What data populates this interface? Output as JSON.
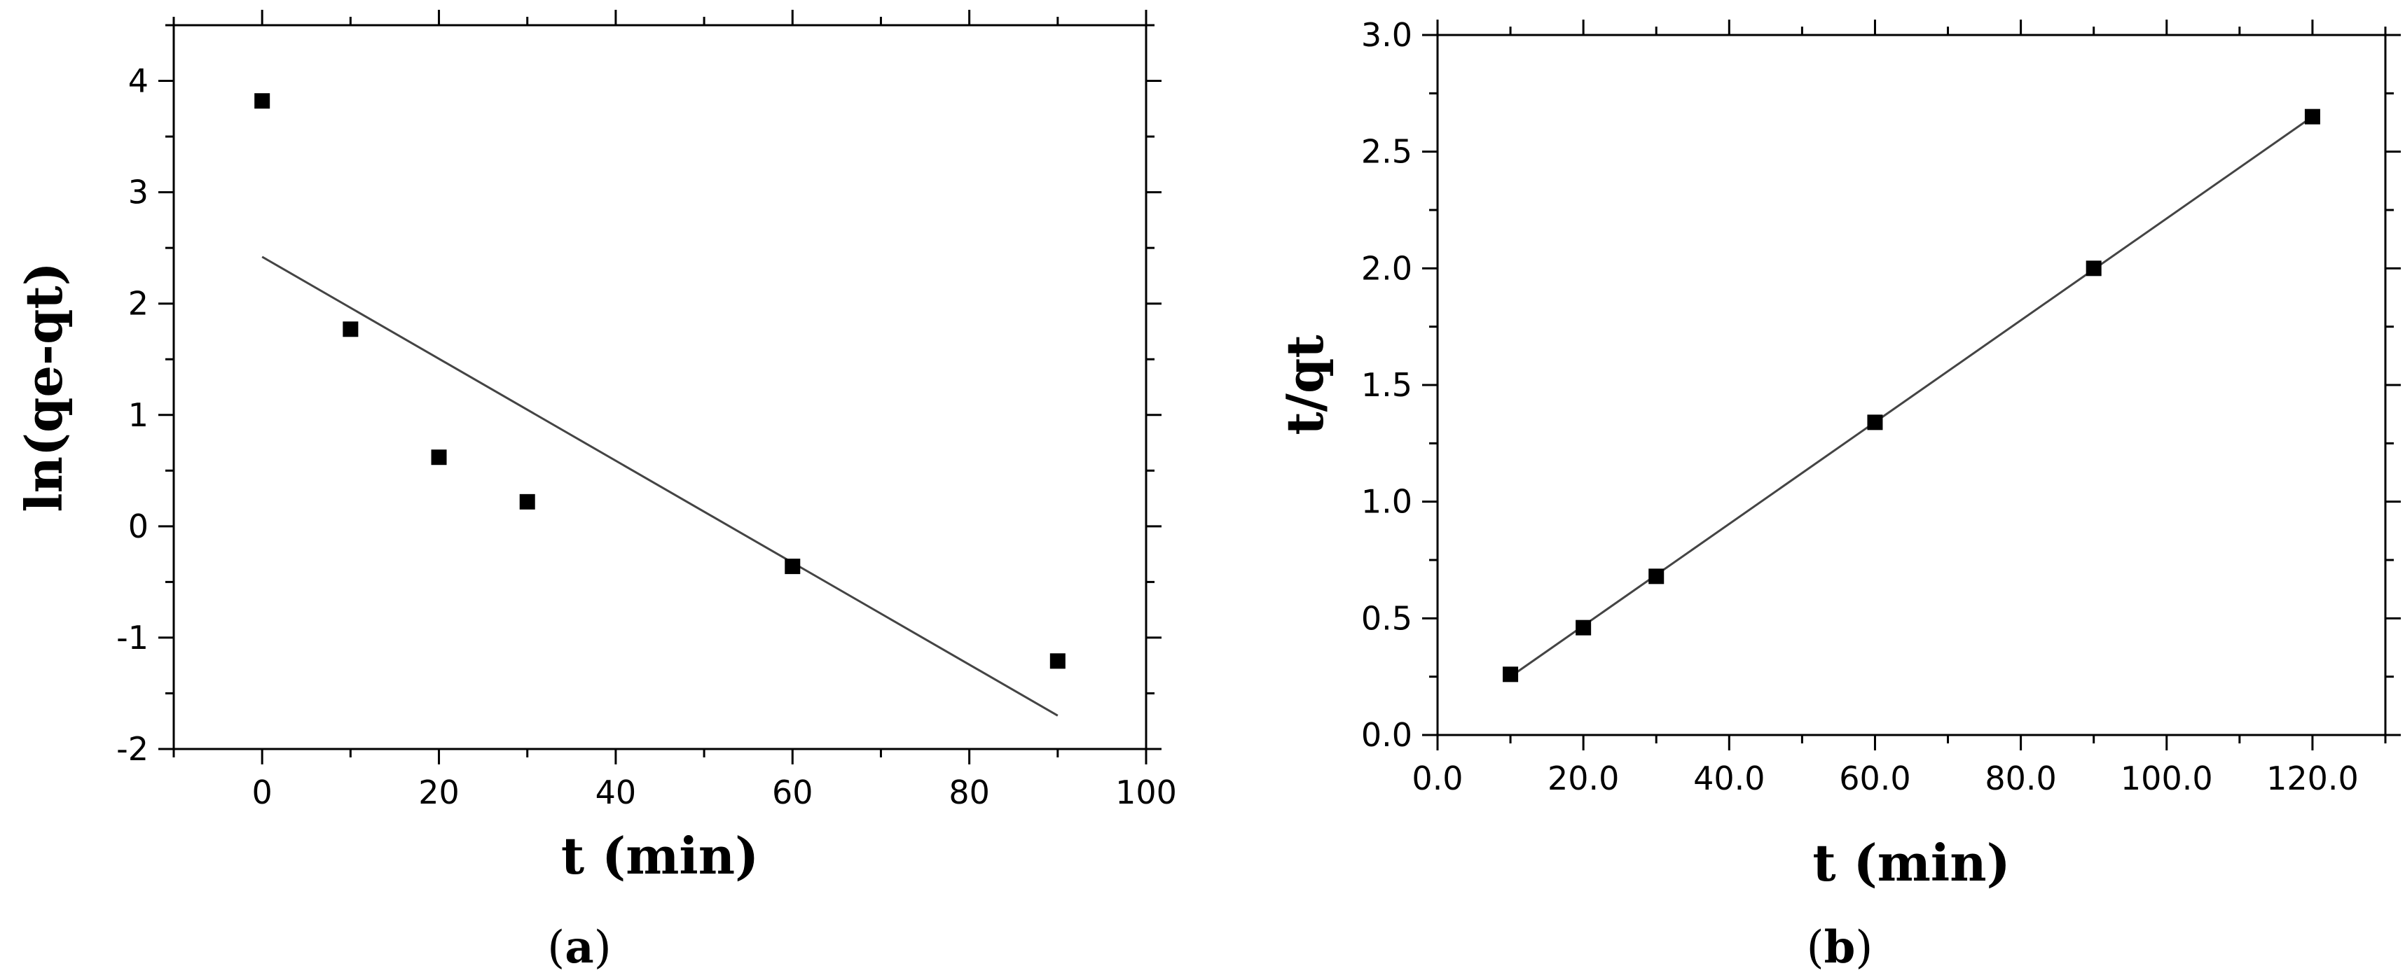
{
  "chart_data": [
    {
      "type": "scatter",
      "panel_label": "a",
      "title": "",
      "xlabel": "t (min)",
      "ylabel": "ln(qe-qt)",
      "xlim": [
        -10,
        100
      ],
      "ylim": [
        -2,
        4.5
      ],
      "x_ticks": [
        0,
        20,
        40,
        60,
        80,
        100
      ],
      "y_ticks": [
        -2,
        -1,
        0,
        1,
        2,
        3,
        4
      ],
      "tick_decimals": 0,
      "grid": false,
      "legend": "none",
      "marker": "square",
      "color": "#000000",
      "series": [
        {
          "x": [
            0,
            10,
            20,
            30,
            60,
            90
          ],
          "y": [
            3.82,
            1.77,
            0.62,
            0.22,
            -0.36,
            -1.21
          ]
        }
      ],
      "fit_line": {
        "x": [
          0,
          90
        ],
        "y": [
          2.42,
          -1.7
        ]
      }
    },
    {
      "type": "scatter",
      "panel_label": "b",
      "title": "",
      "xlabel": "t (min)",
      "ylabel": "t/qt",
      "xlim": [
        0,
        130
      ],
      "ylim": [
        0,
        3.0
      ],
      "x_ticks": [
        0,
        20,
        40,
        60,
        80,
        100,
        120
      ],
      "y_ticks": [
        0.0,
        0.5,
        1.0,
        1.5,
        2.0,
        2.5,
        3.0
      ],
      "tick_decimals": 1,
      "grid": false,
      "legend": "none",
      "marker": "square",
      "color": "#000000",
      "series": [
        {
          "x": [
            10,
            20,
            30,
            60,
            90,
            120
          ],
          "y": [
            0.26,
            0.46,
            0.68,
            1.34,
            2.0,
            2.65
          ]
        }
      ],
      "fit_line": {
        "x": [
          10,
          120
        ],
        "y": [
          0.25,
          2.65
        ]
      }
    }
  ]
}
